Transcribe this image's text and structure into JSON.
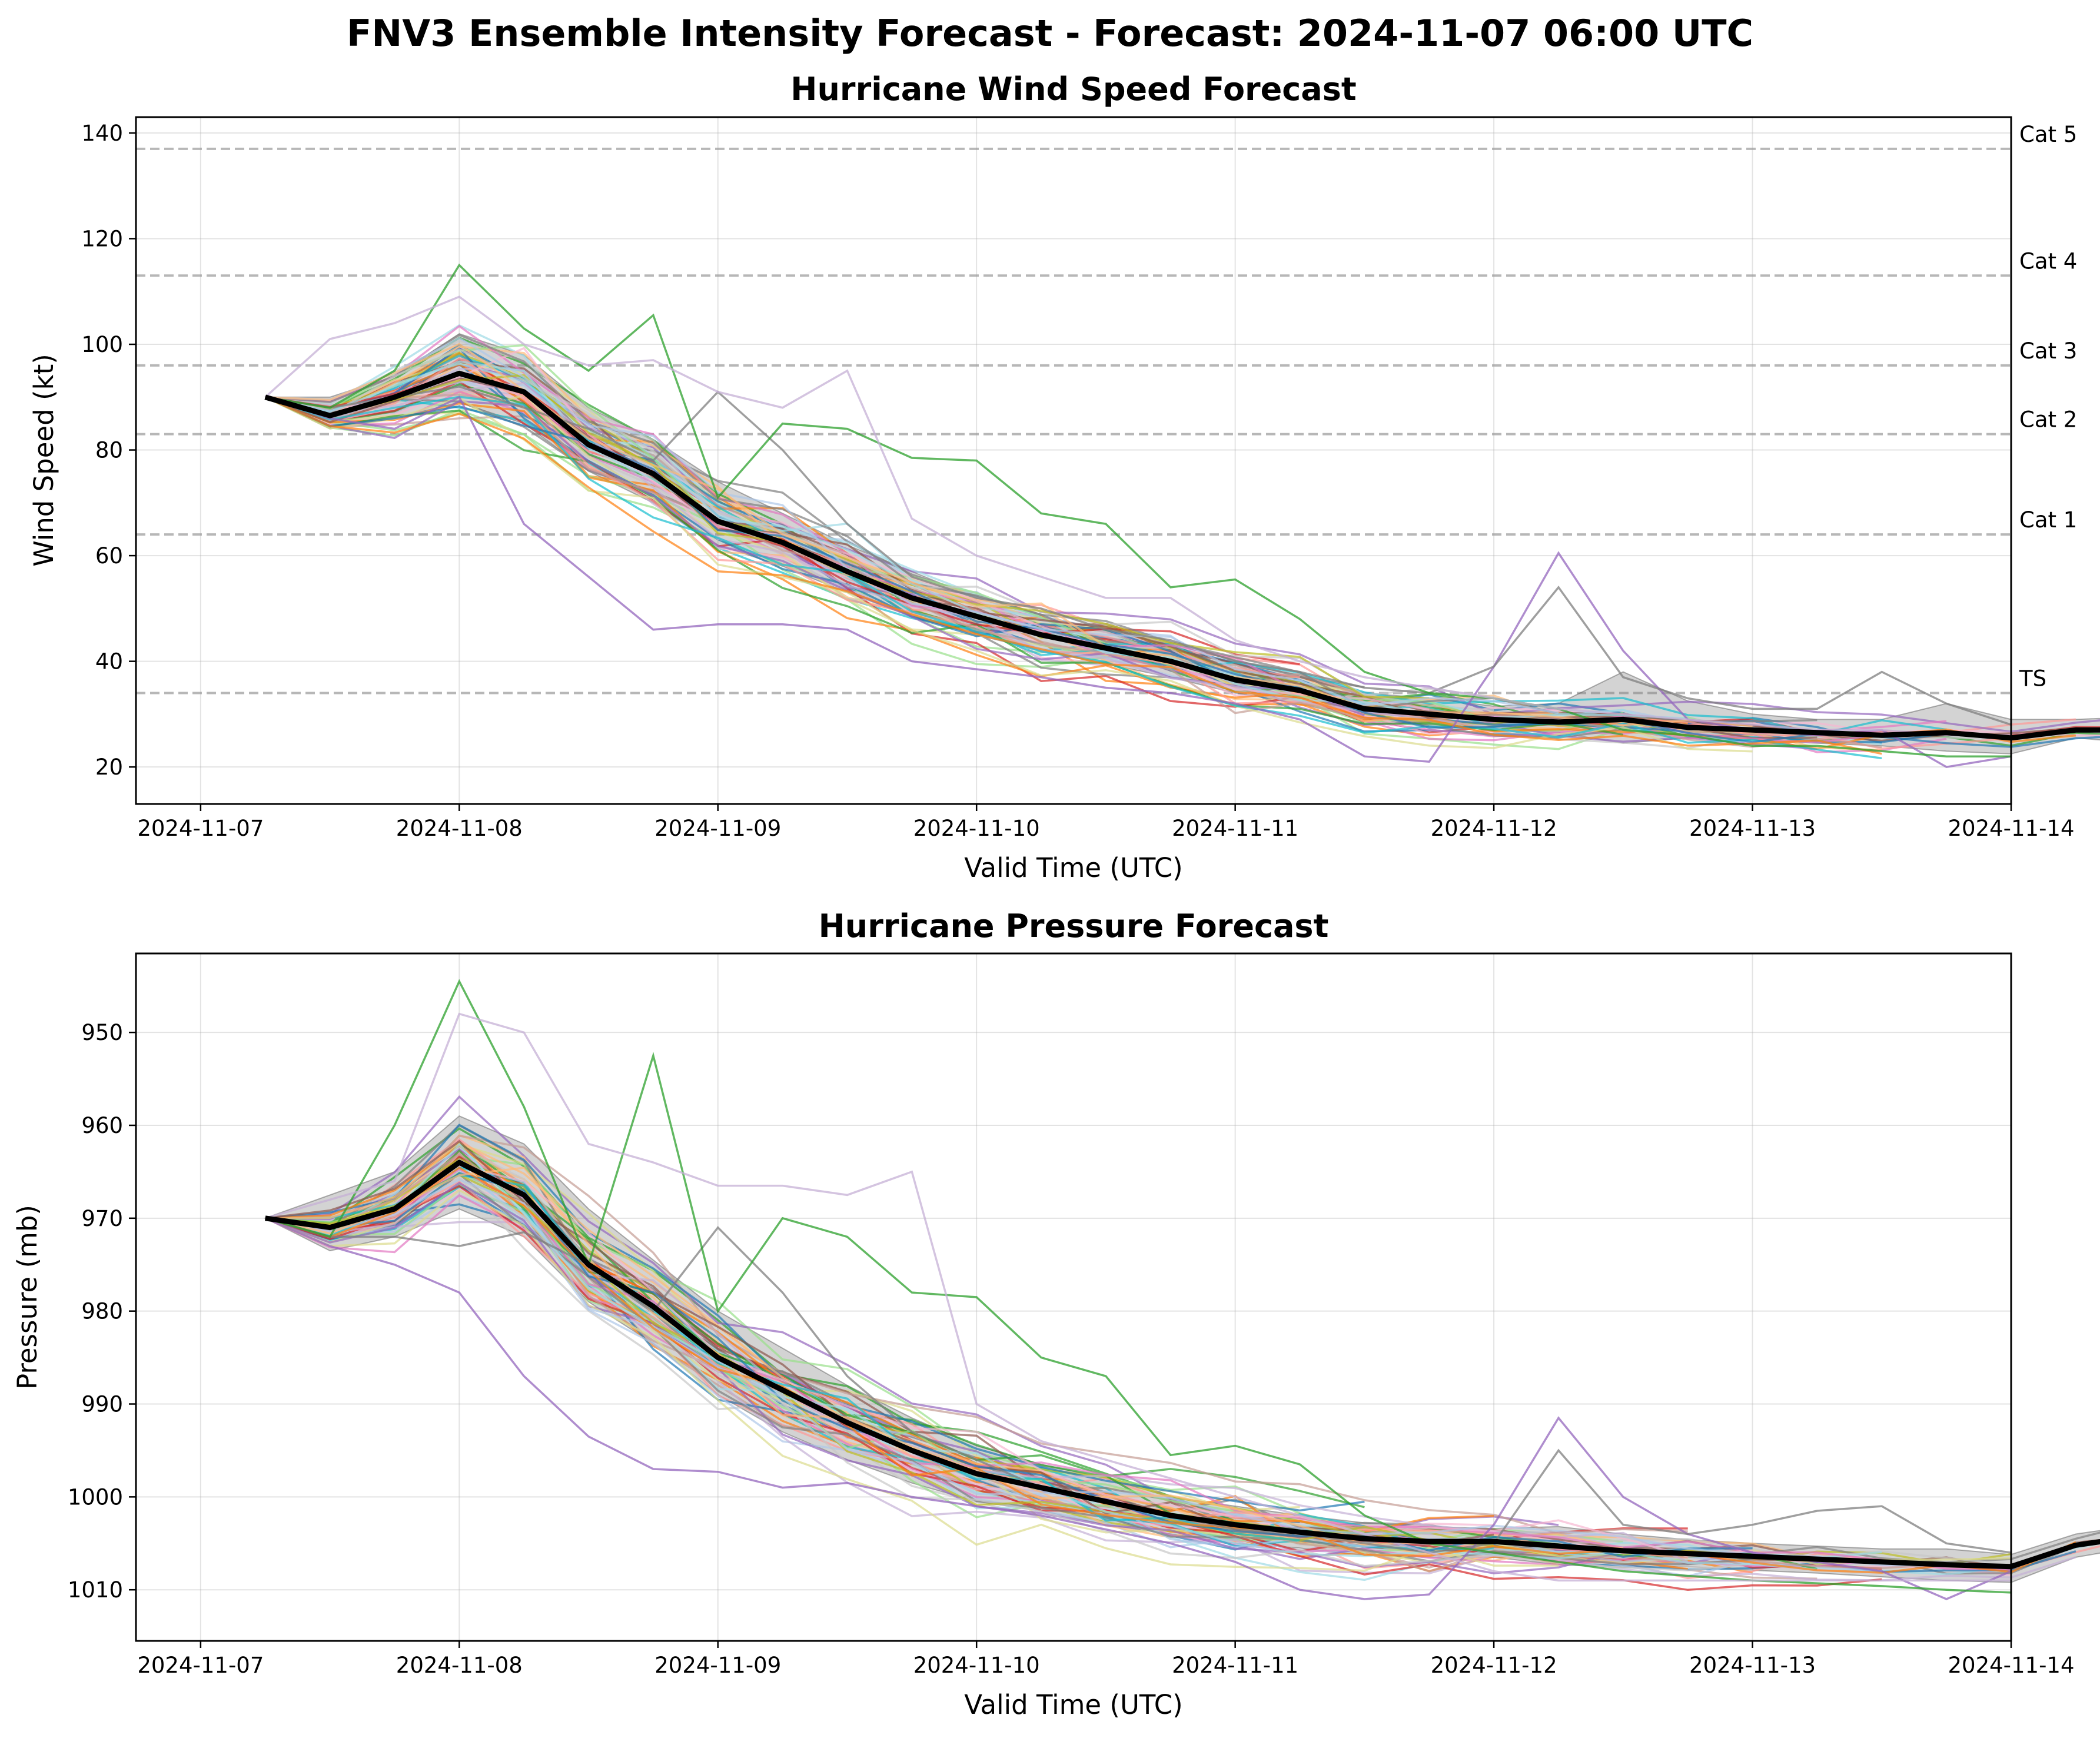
{
  "figure": {
    "suptitle": "FNV3 Ensemble Intensity Forecast - Forecast: 2024-11-07 06:00 UTC"
  },
  "chart_data": [
    {
      "id": "wind",
      "type": "line",
      "title": "Hurricane Wind Speed Forecast",
      "xlabel": "Valid Time (UTC)",
      "ylabel": "Wind Speed (kt)",
      "x_start": "2024-11-07 06:00",
      "step_hours": 6,
      "xlim_days": [
        -0.25,
        7.0
      ],
      "x_ticks": [
        "2024-11-07",
        "2024-11-08",
        "2024-11-09",
        "2024-11-10",
        "2024-11-11",
        "2024-11-12",
        "2024-11-13",
        "2024-11-14"
      ],
      "ylim": [
        13,
        143
      ],
      "y_ticks": [
        20,
        40,
        60,
        80,
        100,
        120,
        140
      ],
      "grid": true,
      "thresholds": [
        {
          "label": "Cat 5",
          "value": 137
        },
        {
          "label": "Cat 4",
          "value": 113
        },
        {
          "label": "Cat 3",
          "value": 96
        },
        {
          "label": "Cat 2",
          "value": 83
        },
        {
          "label": "Cat 1",
          "value": 64
        },
        {
          "label": "TS",
          "value": 34
        }
      ],
      "ensemble_members": 64,
      "ensemble_spread": 5,
      "mean": [
        90,
        86.5,
        90,
        94.5,
        91,
        81,
        75.5,
        66.5,
        62.5,
        57,
        52,
        48.5,
        45,
        42.5,
        40,
        36.5,
        34.5,
        31,
        30,
        29,
        28.5,
        29,
        27.5,
        27,
        26.5,
        26,
        26.5,
        25.5,
        27,
        27
      ],
      "lower": [
        90,
        84,
        86,
        89,
        85,
        76,
        70,
        62,
        58,
        53,
        48.5,
        45,
        42,
        39.5,
        37,
        34,
        32,
        29,
        28,
        27,
        26.5,
        24.5,
        25.5,
        25,
        24.5,
        24,
        23,
        22.5,
        25.5,
        24.5
      ],
      "upper": [
        90,
        90,
        94,
        102,
        98,
        88,
        82,
        74,
        68,
        62,
        57,
        52,
        48.5,
        46,
        43,
        39.5,
        37.5,
        34,
        33,
        31.5,
        32,
        38,
        32.5,
        30,
        29,
        29,
        32,
        29,
        29,
        29.5
      ],
      "highlight_members": [
        {
          "color": "#9467bd",
          "values": [
            90,
            86,
            84,
            90,
            66,
            56,
            46,
            47,
            47,
            46,
            40,
            38.5,
            37,
            35,
            34,
            32,
            29,
            22,
            21,
            39,
            60.5,
            42,
            29,
            27,
            26,
            27,
            20,
            22
          ]
        },
        {
          "color": "#7f7f7f",
          "values": [
            90,
            88,
            90,
            92,
            88,
            84,
            78,
            91,
            80,
            66,
            56,
            52,
            50,
            46,
            44,
            40,
            38,
            35,
            34,
            39,
            54,
            37,
            33,
            31,
            31,
            38,
            32,
            28
          ]
        },
        {
          "color": "#2ca02c",
          "values": [
            90,
            88,
            95,
            115,
            103,
            95,
            105.5,
            71,
            85,
            84,
            78.5,
            78,
            68,
            66,
            54,
            55.5,
            48,
            38,
            34,
            33,
            31,
            27,
            26,
            24,
            24,
            23,
            22,
            22
          ]
        },
        {
          "color": "#c5b0d5",
          "values": [
            90,
            101,
            104,
            109,
            100,
            96,
            97,
            91,
            88,
            95,
            67,
            60,
            56,
            52,
            52,
            44,
            40,
            37,
            35,
            33,
            31,
            30,
            29,
            28,
            27,
            27,
            26,
            26
          ]
        }
      ]
    },
    {
      "id": "pressure",
      "type": "line",
      "title": "Hurricane Pressure Forecast",
      "xlabel": "Valid Time (UTC)",
      "ylabel": "Pressure (mb)",
      "x_start": "2024-11-07 06:00",
      "step_hours": 6,
      "xlim_days": [
        -0.25,
        7.0
      ],
      "x_ticks": [
        "2024-11-07",
        "2024-11-08",
        "2024-11-09",
        "2024-11-10",
        "2024-11-11",
        "2024-11-12",
        "2024-11-13",
        "2024-11-14"
      ],
      "ylim": [
        1015.5,
        941.5
      ],
      "y_ticks": [
        950,
        960,
        970,
        980,
        990,
        1000,
        1010
      ],
      "inverted": true,
      "grid": true,
      "ensemble_members": 64,
      "ensemble_spread": 3,
      "mean": [
        970,
        971,
        969,
        964,
        967.5,
        975,
        979.5,
        985,
        988.5,
        992,
        995,
        997.5,
        999,
        1000.5,
        1002,
        1003,
        1003.8,
        1004.5,
        1004.8,
        1004.8,
        1005.3,
        1005.8,
        1006.1,
        1006.4,
        1006.7,
        1007,
        1007.3,
        1007.5,
        1005.2,
        1004.2
      ],
      "lower": [
        970,
        967.5,
        965,
        959,
        962,
        969,
        974.5,
        980,
        984,
        988,
        991.5,
        994.5,
        996.5,
        998,
        1000,
        1001,
        1002,
        1002.8,
        1003.2,
        1003.4,
        1003.2,
        1004,
        1004.6,
        1005,
        1005.3,
        1005.6,
        1005.6,
        1006.2,
        1004,
        1003
      ],
      "upper": [
        970,
        973.5,
        972,
        969,
        972,
        979,
        983.5,
        989,
        993,
        996,
        998.5,
        1000.5,
        1001.5,
        1003,
        1004,
        1005,
        1005.5,
        1006.3,
        1006.5,
        1006.5,
        1007.3,
        1007.6,
        1007.5,
        1007.9,
        1008.2,
        1008.6,
        1009,
        1009.2,
        1006.5,
        1005.3
      ],
      "highlight_members": [
        {
          "color": "#9467bd",
          "values": [
            970,
            973,
            975,
            978,
            987,
            993.5,
            997,
            997.3,
            999,
            998.5,
            1000,
            1001,
            1002,
            1003.5,
            1005,
            1007,
            1010,
            1011,
            1010.5,
            1003,
            991.5,
            1000,
            1004,
            1006,
            1007,
            1008,
            1011,
            1008
          ]
        },
        {
          "color": "#7f7f7f",
          "values": [
            970,
            972,
            972,
            973,
            971.5,
            975,
            980,
            971,
            978,
            987,
            993,
            996,
            999,
            1000.5,
            1002,
            1003.5,
            1004,
            1005,
            1006,
            1005,
            995,
            1003,
            1004,
            1003,
            1001.5,
            1001,
            1005,
            1006
          ]
        },
        {
          "color": "#2ca02c",
          "values": [
            970,
            972,
            960,
            944.5,
            958,
            975,
            952.5,
            980,
            970,
            972,
            978,
            978.5,
            985,
            987,
            995.5,
            994.5,
            996.5,
            1002,
            1005,
            1006,
            1007,
            1008,
            1008.5,
            1009,
            1009.3,
            1009.6,
            1010,
            1010.3
          ]
        },
        {
          "color": "#c5b0d5",
          "values": [
            970,
            968,
            966,
            948,
            950,
            962,
            964,
            966.5,
            966.5,
            967.5,
            965,
            990,
            994,
            996,
            998,
            1000,
            1002,
            1004,
            1006,
            1008,
            1009,
            1009,
            1009,
            1009,
            1009,
            1009,
            1009,
            1009
          ]
        }
      ]
    }
  ]
}
